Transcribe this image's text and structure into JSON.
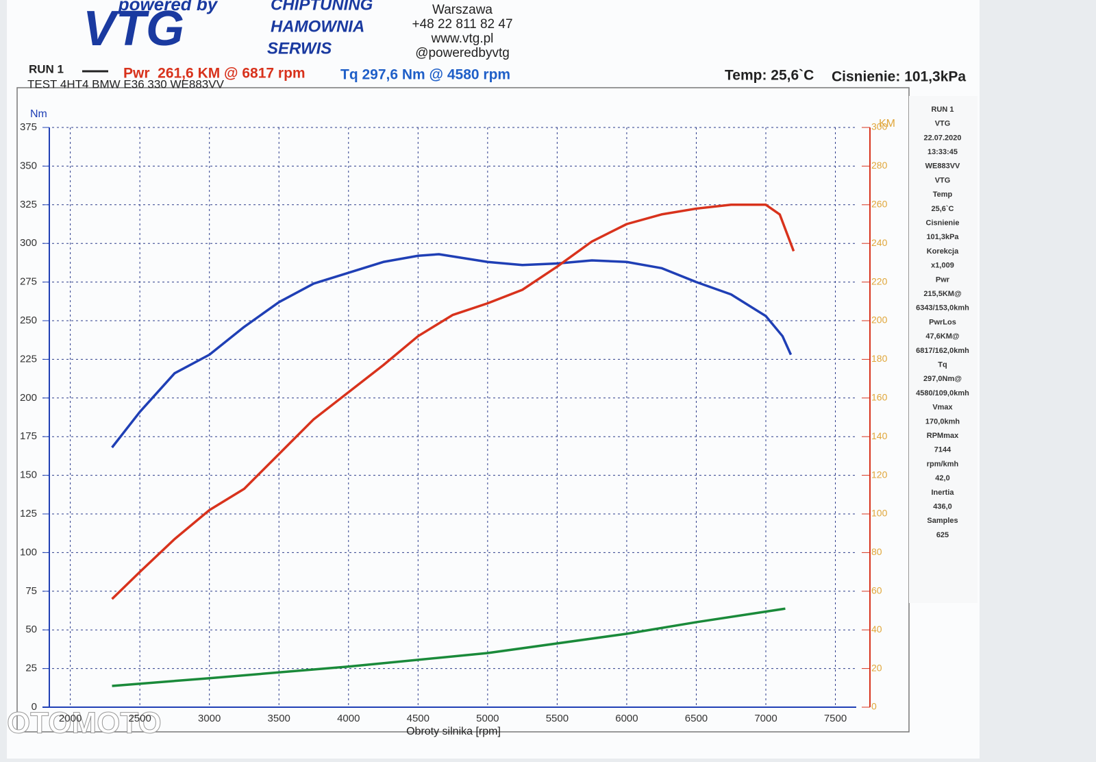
{
  "header": {
    "logo_top": "powered by",
    "logo": "VTG",
    "services": [
      "CHIPTUNING",
      "HAMOWNIA",
      "SERWIS"
    ],
    "contact": [
      "Warszawa",
      "+48 22 811 82 47",
      "www.vtg.pl",
      "@poweredbyvtg"
    ],
    "run": "RUN 1",
    "power_summary": "Pwr  261,6 KM @ 6817 rpm",
    "torque_summary": "Tq 297,6 Nm @ 4580 rpm",
    "temp": "Temp: 25,6`C",
    "pressure": "Cisnienie: 101,3kPa",
    "test": "TEST 4HT4 BMW E36 330 WE883VV"
  },
  "side_panel": [
    "RUN 1",
    "VTG",
    "22.07.2020",
    "13:33:45",
    "WE883VV",
    "VTG",
    "Temp",
    "25,6`C",
    "Cisnienie",
    "101,3kPa",
    "Korekcja",
    "x1,009",
    "Pwr",
    "215,5KM@",
    "6343/153,0kmh",
    "PwrLos",
    "47,6KM@",
    "6817/162,0kmh",
    "Tq",
    "297,0Nm@",
    "4580/109,0kmh",
    "Vmax",
    "170,0kmh",
    "RPMmax",
    "7144",
    "rpm/kmh",
    "42,0",
    "Inertia",
    "436,0",
    "Samples",
    "625"
  ],
  "watermark": "OTOMOTO",
  "chart_data": {
    "type": "line",
    "x_label": "Obroty silnika [rpm]",
    "y_label": "Nm",
    "y2_label": "KM",
    "xlim": [
      1800,
      7650
    ],
    "xticks": [
      2000,
      2500,
      3000,
      3500,
      4000,
      4500,
      5000,
      5500,
      6000,
      6500,
      7000,
      7500
    ],
    "ylim": [
      0,
      375
    ],
    "yticks": [
      0,
      25,
      50,
      75,
      100,
      125,
      150,
      175,
      200,
      225,
      250,
      275,
      300,
      325,
      350,
      375
    ],
    "y2lim": [
      0,
      300
    ],
    "y2ticks": [
      0,
      20,
      40,
      60,
      80,
      100,
      120,
      140,
      160,
      180,
      200,
      220,
      240,
      260,
      280,
      300
    ],
    "grid": true,
    "series": [
      {
        "name": "Tq",
        "color": "#1f3fb5",
        "x": [
          2300,
          2500,
          2750,
          3000,
          3250,
          3500,
          3750,
          4000,
          4250,
          4500,
          4650,
          5000,
          5250,
          5500,
          5750,
          6000,
          6250,
          6500,
          6750,
          7000,
          7120,
          7180
        ],
        "values": [
          168,
          191,
          216,
          228,
          246,
          262,
          274,
          281,
          288,
          292,
          293,
          288,
          286,
          287,
          289,
          288,
          284,
          275,
          267,
          253,
          240,
          228
        ]
      },
      {
        "name": "Pwr",
        "color": "#d8321c",
        "axis": "y2",
        "x": [
          2300,
          2500,
          2750,
          3000,
          3250,
          3500,
          3750,
          4000,
          4250,
          4500,
          4750,
          5000,
          5250,
          5500,
          5750,
          6000,
          6250,
          6500,
          6750,
          7000,
          7100,
          7200
        ],
        "values": [
          56,
          70,
          87,
          102,
          113,
          131,
          149,
          163,
          177,
          192,
          203,
          209,
          216,
          228,
          241,
          250,
          255,
          258,
          260,
          260,
          255,
          236
        ]
      },
      {
        "name": "PwrLos",
        "color": "#1a8a3a",
        "axis": "y2",
        "x": [
          2300,
          3000,
          4000,
          5000,
          6000,
          6500,
          7140
        ],
        "values": [
          11,
          15,
          21,
          28,
          38,
          44,
          51
        ]
      }
    ]
  }
}
